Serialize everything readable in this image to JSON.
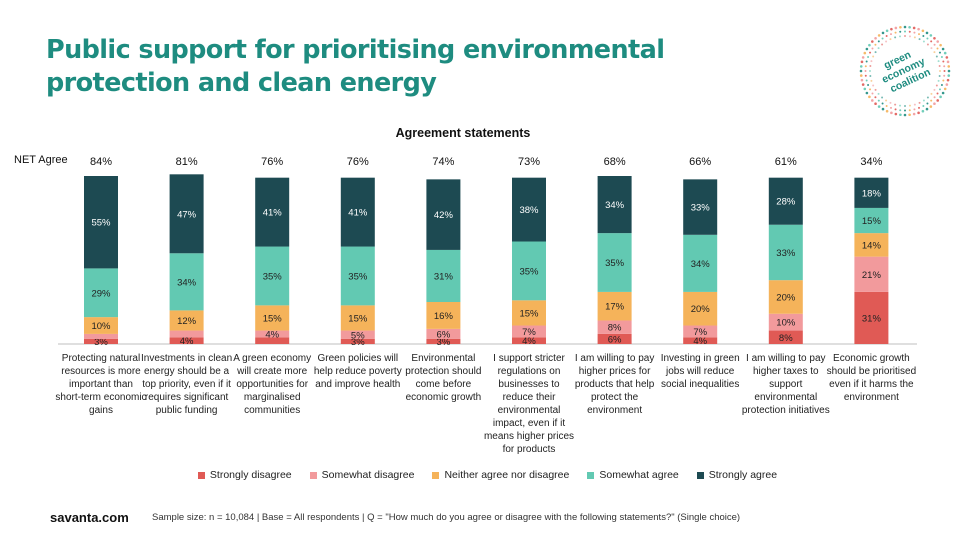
{
  "header": {
    "title_line1": "Public support for prioritising environmental",
    "title_line2": "protection and clean energy",
    "logo_text": [
      "green",
      "economy",
      "coalition"
    ]
  },
  "chart_data": {
    "type": "bar",
    "stacked": true,
    "title": "Agreement statements",
    "net_label": "NET Agree",
    "categories": [
      "Protecting natural resources is more important than short-term economic gains",
      "Investments in clean energy should be a top priority, even if it requires significant public funding",
      "A green economy will create more opportunities for marginalised communities",
      "Green policies will help reduce poverty and improve health",
      "Environmental protection should come before economic growth",
      "I support stricter regulations on businesses to reduce their environmental impact, even if it means higher prices for products",
      "I am willing to pay higher prices for products that help protect the environment",
      "Investing in green jobs will reduce social inequalities",
      "I am willing to pay higher taxes to support environmental protection initiatives",
      "Economic growth should be prioritised even if it harms the environment"
    ],
    "net_agree": [
      "84%",
      "81%",
      "76%",
      "76%",
      "74%",
      "73%",
      "68%",
      "66%",
      "61%",
      "34%"
    ],
    "series": [
      {
        "name": "Strongly disagree",
        "color": "#e05a55",
        "values": [
          3,
          4,
          4,
          3,
          3,
          4,
          6,
          4,
          8,
          31
        ]
      },
      {
        "name": "Somewhat disagree",
        "color": "#f29a9c",
        "values": [
          3,
          4,
          4,
          5,
          6,
          7,
          8,
          7,
          10,
          21
        ]
      },
      {
        "name": "Neither agree nor disagree",
        "color": "#f5b35a",
        "values": [
          10,
          12,
          15,
          15,
          16,
          15,
          17,
          20,
          20,
          14
        ]
      },
      {
        "name": "Somewhat agree",
        "color": "#62c9b2",
        "values": [
          29,
          34,
          35,
          35,
          31,
          35,
          35,
          34,
          33,
          15
        ]
      },
      {
        "name": "Strongly agree",
        "color": "#1d4a52",
        "values": [
          55,
          47,
          41,
          41,
          42,
          38,
          34,
          33,
          28,
          18
        ]
      }
    ],
    "labels": [
      [
        "3%",
        "",
        "10%",
        "29%",
        "55%"
      ],
      [
        "4%",
        "",
        "12%",
        "34%",
        "47%"
      ],
      [
        "",
        "4%",
        "15%",
        "35%",
        "41%"
      ],
      [
        "3%",
        "5%",
        "15%",
        "35%",
        "41%"
      ],
      [
        "3%",
        "6%",
        "16%",
        "31%",
        "42%"
      ],
      [
        "4%",
        "7%",
        "15%",
        "35%",
        "38%"
      ],
      [
        "6%",
        "8%",
        "17%",
        "35%",
        "34%"
      ],
      [
        "4%",
        "7%",
        "20%",
        "34%",
        "33%"
      ],
      [
        "8%",
        "10%",
        "20%",
        "33%",
        "28%"
      ],
      [
        "31%",
        "21%",
        "14%",
        "15%",
        "18%"
      ]
    ],
    "ylim": [
      0,
      100
    ],
    "legend_position": "bottom"
  },
  "footer": {
    "brand": "savanta.com",
    "note": "Sample size: n = 10,084 | Base = All respondents | Q = \"How much do you agree or disagree with the following statements?\" (Single choice)"
  }
}
